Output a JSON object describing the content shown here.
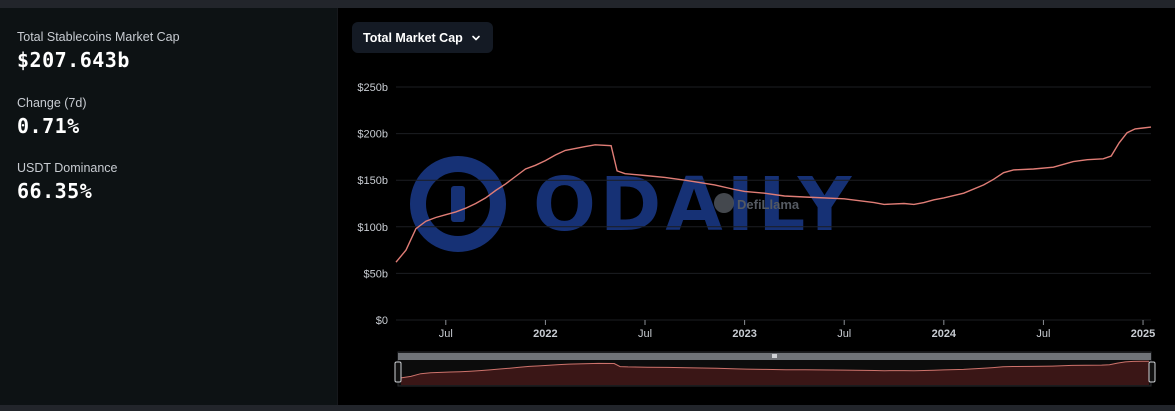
{
  "stats": [
    {
      "label": "Total Stablecoins Market Cap",
      "value": "$207.643b"
    },
    {
      "label": "Change (7d)",
      "value": "0.71%"
    },
    {
      "label": "USDT Dominance",
      "value": "66.35%"
    }
  ],
  "metric_selector": {
    "label": "Total Market Cap"
  },
  "watermarks": {
    "odaily": "ODAILY",
    "defillama": "DefiLlama"
  },
  "colors": {
    "line": "#e07d76",
    "brush_fill": "#3a1616",
    "background": "#000000",
    "grid": "#1c1e22"
  },
  "chart_data": {
    "type": "line",
    "title": "",
    "xlabel": "",
    "ylabel": "",
    "y_ticks": [
      "$0",
      "$50b",
      "$100b",
      "$150b",
      "$200b",
      "$250b"
    ],
    "ylim": [
      0,
      250
    ],
    "x_ticks": [
      {
        "label": "Jul",
        "year": 2021.5,
        "bold": false
      },
      {
        "label": "2022",
        "year": 2022.0,
        "bold": true
      },
      {
        "label": "Jul",
        "year": 2022.5,
        "bold": false
      },
      {
        "label": "2023",
        "year": 2023.0,
        "bold": true
      },
      {
        "label": "Jul",
        "year": 2023.5,
        "bold": false
      },
      {
        "label": "2024",
        "year": 2024.0,
        "bold": true
      },
      {
        "label": "Jul",
        "year": 2024.5,
        "bold": false
      },
      {
        "label": "2025",
        "year": 2025.0,
        "bold": true
      }
    ],
    "xlim": [
      2021.25,
      2025.04
    ],
    "grid": true,
    "series": [
      {
        "name": "",
        "points": [
          [
            2021.25,
            62
          ],
          [
            2021.3,
            75
          ],
          [
            2021.35,
            98
          ],
          [
            2021.4,
            106
          ],
          [
            2021.45,
            110
          ],
          [
            2021.5,
            113
          ],
          [
            2021.55,
            116
          ],
          [
            2021.6,
            120
          ],
          [
            2021.65,
            125
          ],
          [
            2021.7,
            131
          ],
          [
            2021.75,
            139
          ],
          [
            2021.8,
            146
          ],
          [
            2021.85,
            154
          ],
          [
            2021.9,
            162
          ],
          [
            2021.95,
            166
          ],
          [
            2022.0,
            171
          ],
          [
            2022.05,
            177
          ],
          [
            2022.1,
            182
          ],
          [
            2022.2,
            186
          ],
          [
            2022.25,
            188
          ],
          [
            2022.33,
            187
          ],
          [
            2022.36,
            160
          ],
          [
            2022.4,
            157
          ],
          [
            2022.5,
            155
          ],
          [
            2022.6,
            153
          ],
          [
            2022.7,
            150
          ],
          [
            2022.85,
            145
          ],
          [
            2022.95,
            140
          ],
          [
            2023.0,
            138
          ],
          [
            2023.1,
            136
          ],
          [
            2023.2,
            133
          ],
          [
            2023.3,
            132
          ],
          [
            2023.5,
            130
          ],
          [
            2023.65,
            126
          ],
          [
            2023.7,
            124
          ],
          [
            2023.8,
            125
          ],
          [
            2023.85,
            124
          ],
          [
            2023.9,
            126
          ],
          [
            2023.95,
            129
          ],
          [
            2024.0,
            131
          ],
          [
            2024.1,
            136
          ],
          [
            2024.2,
            145
          ],
          [
            2024.25,
            151
          ],
          [
            2024.3,
            158
          ],
          [
            2024.35,
            161
          ],
          [
            2024.45,
            162
          ],
          [
            2024.55,
            164
          ],
          [
            2024.65,
            170
          ],
          [
            2024.72,
            172
          ],
          [
            2024.8,
            173
          ],
          [
            2024.84,
            176
          ],
          [
            2024.88,
            190
          ],
          [
            2024.92,
            201
          ],
          [
            2024.96,
            205
          ],
          [
            2025.0,
            206
          ],
          [
            2025.04,
            207
          ]
        ]
      }
    ],
    "legend": "none"
  }
}
